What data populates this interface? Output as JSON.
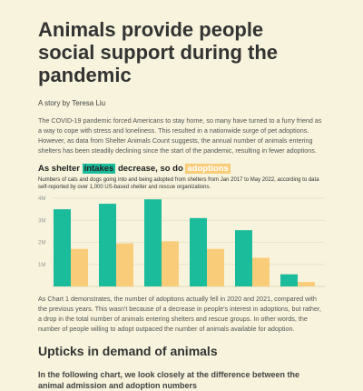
{
  "article": {
    "title": "Animals provide people social support during the pandemic",
    "byline": "A story by Teresa Liu",
    "intro": "The COVID-19 pandemic forced Americans to stay home, so many have turned to a furry friend as a way to cope with stress and loneliness. This resulted in a nationwide surge of pet adoptions. However, as data from Shelter Animals Count suggests, the annual number of animals entering shelters has been steadily declining since the start of the pandemic, resulting in fewer adoptions.",
    "chart_title_pre": "As shelter ",
    "chart_title_intakes": "intakes",
    "chart_title_mid": " decrease, so do ",
    "chart_title_adoptions": "adoptions",
    "chart_subtitle": "Numbers of cats and dogs going into and being adopted from shelters from Jan 2017 to May 2022, according to data self-reported by over 1,000 US-based shelter and rescue organizations.",
    "paragraph2": "As Chart 1 demonstrates, the number of adoptions actually fell in 2020 and 2021, compared with the previous years. This wasn't because of a decrease in people's interest in adoptions, but rather, a drop in the total number of animals entering shelters and rescue groups. In other words, the number of people willing to adopt outpaced the number of animals available for adoption.",
    "section_heading": "Upticks in demand of animals",
    "section_subheading": "In the following chart, we look closely at the difference between the animal admission and adoption numbers"
  },
  "colors": {
    "intakes": "#1abc9c",
    "adoptions": "#f9cc7a",
    "background": "#f7f3dc"
  },
  "chart_data": {
    "type": "bar",
    "categories": [
      "",
      "",
      "",
      "",
      "",
      ""
    ],
    "series": [
      {
        "name": "intakes",
        "values": [
          3.5,
          3.75,
          3.95,
          3.1,
          2.55,
          0.55
        ]
      },
      {
        "name": "adoptions",
        "values": [
          1.7,
          1.95,
          2.05,
          1.7,
          1.3,
          0.2
        ]
      }
    ],
    "yticks": [
      "1M",
      "2M",
      "3M",
      "4M"
    ],
    "ytick_values": [
      1,
      2,
      3,
      4
    ],
    "ylim": [
      0,
      4
    ],
    "grid": true,
    "title": "",
    "xlabel": "",
    "ylabel": ""
  }
}
